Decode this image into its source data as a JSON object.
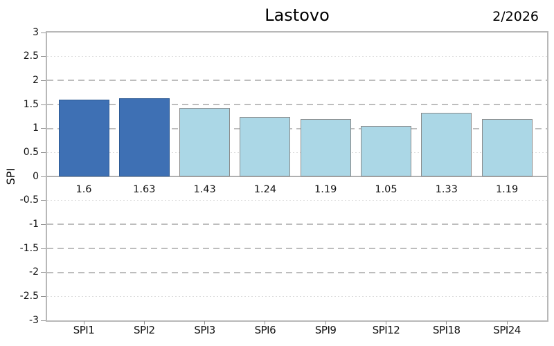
{
  "header": {
    "title": "Lastovo",
    "period": "2/2026"
  },
  "chart_data": {
    "type": "bar",
    "title": "Lastovo",
    "period_label": "2/2026",
    "xlabel": "",
    "ylabel": "SPI",
    "categories": [
      "SPI1",
      "SPI2",
      "SPI3",
      "SPI6",
      "SPI9",
      "SPI12",
      "SPI18",
      "SPI24"
    ],
    "values": [
      1.6,
      1.63,
      1.43,
      1.24,
      1.19,
      1.05,
      1.33,
      1.19
    ],
    "value_labels": [
      "1.6",
      "1.63",
      "1.43",
      "1.24",
      "1.19",
      "1.05",
      "1.33",
      "1.19"
    ],
    "ylim": [
      -3,
      3
    ],
    "ytick_labels": [
      "3",
      "2.5",
      "2",
      "1.5",
      "1",
      "0.5",
      "0",
      "-0.5",
      "-1",
      "-1.5",
      "-2",
      "-2.5",
      "-3"
    ],
    "yticks": [
      3,
      2.5,
      2,
      1.5,
      1,
      0.5,
      0,
      -0.5,
      -1,
      -1.5,
      -2,
      -2.5,
      -3
    ],
    "grid": {
      "dashed_lines": [
        2,
        1.5,
        1,
        -1,
        -1.5,
        -2
      ],
      "dotted_lines": [
        2.5,
        0.5,
        -0.5,
        -2.5
      ],
      "zero_line": 0
    },
    "legend": null,
    "bar_highlight": [
      true,
      true,
      false,
      false,
      false,
      false,
      false,
      false
    ],
    "colors": {
      "highlight_fill": "#3e70b4",
      "highlight_border": "#2d5a94",
      "normal_fill": "#abd7e6",
      "normal_border": "#8a8a8a",
      "grid_dashed": "#bdbdbd",
      "grid_dotted": "#dcdcdc",
      "axis_border": "#b8b8b8",
      "zero_line": "#b0b0b0",
      "text": "#000000"
    }
  }
}
